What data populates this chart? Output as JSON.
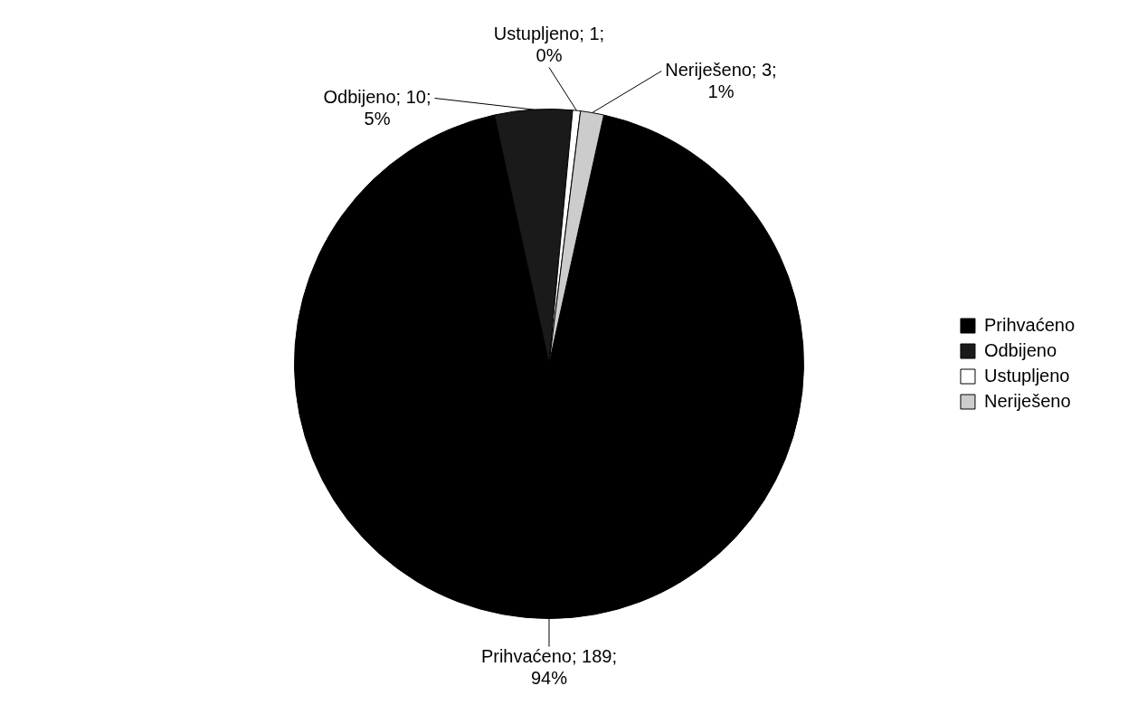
{
  "chart_data": {
    "type": "pie",
    "categories": [
      "Prihvaćeno",
      "Odbijeno",
      "Ustupljeno",
      "Neriješeno"
    ],
    "values": [
      189,
      10,
      1,
      3
    ],
    "colors": [
      "#000000",
      "#1a1a1a",
      "#ffffff",
      "#cccccc"
    ],
    "value_labels": [
      "Prihvaćeno; 189; 94%",
      "Odbijeno; 10; 5%",
      "Ustupljeno; 1; 0%",
      "Neriješeno; 3; 1%"
    ],
    "legend": "right"
  }
}
